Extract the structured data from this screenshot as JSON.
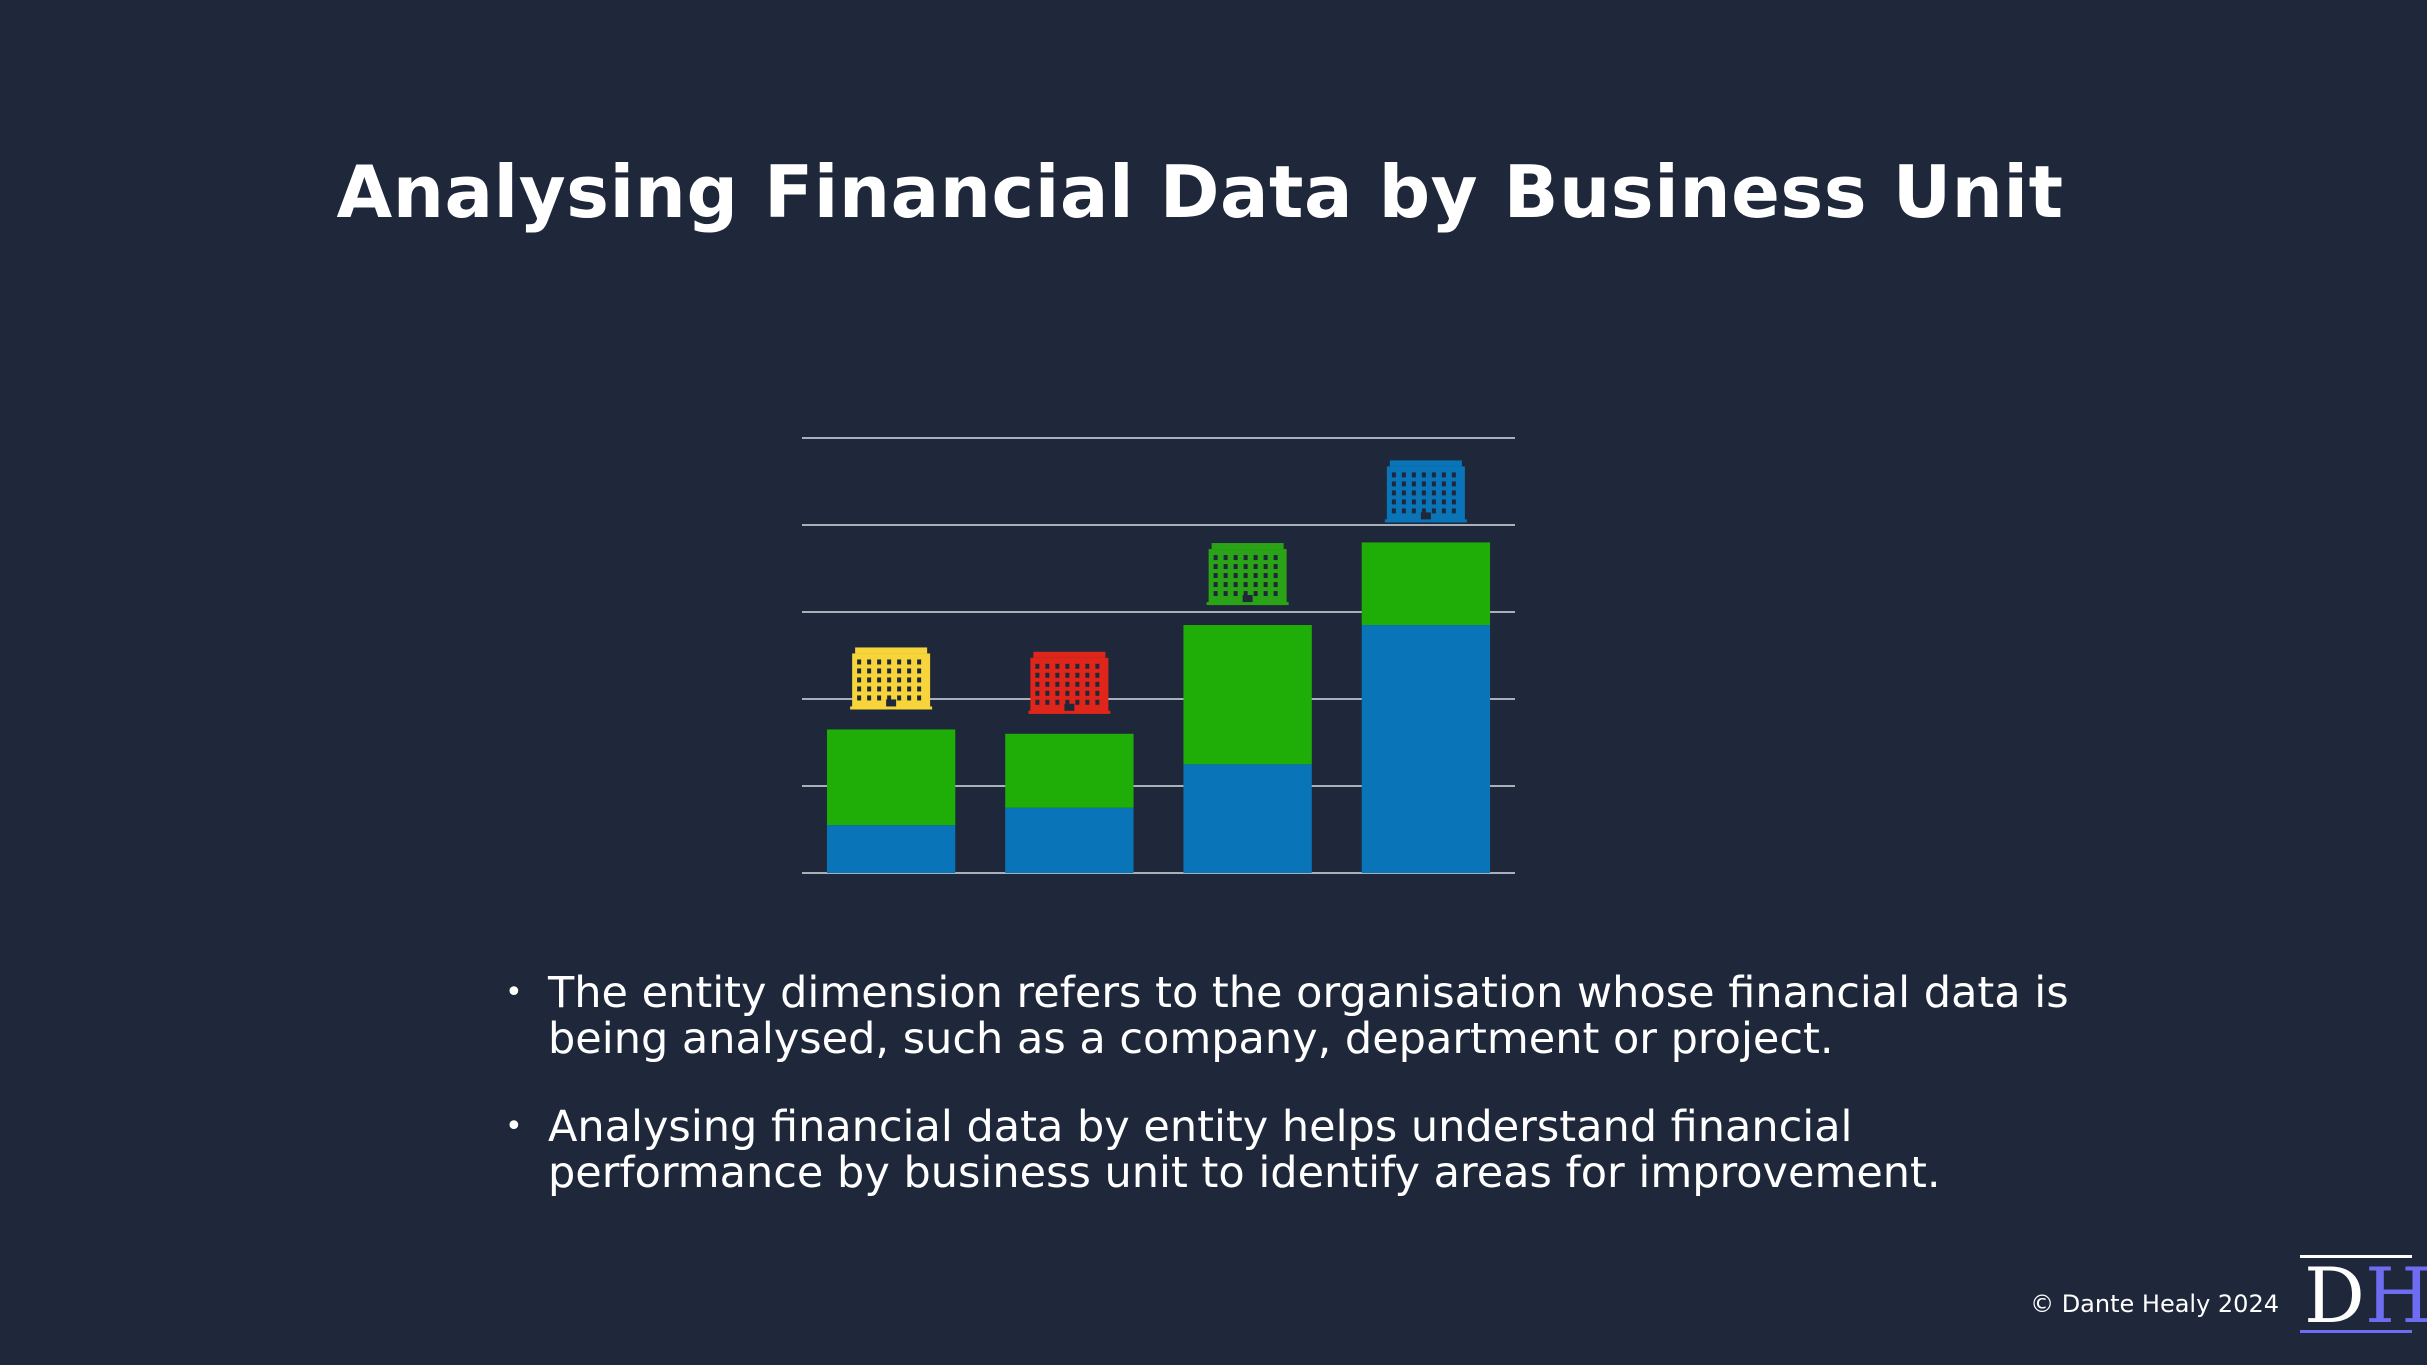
{
  "slide": {
    "title": "Analysing Financial Data by Business Unit",
    "bullets": [
      "The entity dimension refers to the organisation whose financial data is being analysed, such as a company, department or project.",
      "Analysing financial data by entity helps understand financial performance by business unit to identify areas for improvement."
    ],
    "bullet_glyph": "•",
    "copyright": "© Dante Healy 2024",
    "logo": {
      "d": "D",
      "h": "H"
    }
  },
  "chart_data": {
    "type": "bar",
    "stacked": true,
    "categories": [
      "",
      "",
      "",
      ""
    ],
    "series": [
      {
        "values": [
          0.55,
          0.75,
          1.25,
          2.85
        ],
        "color": "#0a74b8"
      },
      {
        "values": [
          1.1,
          0.85,
          1.6,
          0.95
        ],
        "color": "#1fae07"
      }
    ],
    "ylim": [
      0,
      5
    ],
    "gridlines": [
      0,
      1,
      2,
      3,
      4,
      5
    ],
    "grid": true,
    "axis_labels": false,
    "unit_icons": [
      {
        "icon": "building-icon",
        "color": "#f6d43a"
      },
      {
        "icon": "building-icon",
        "color": "#e0261a"
      },
      {
        "icon": "building-icon",
        "color": "#2aa316"
      },
      {
        "icon": "building-icon",
        "color": "#0a74b8"
      }
    ]
  }
}
